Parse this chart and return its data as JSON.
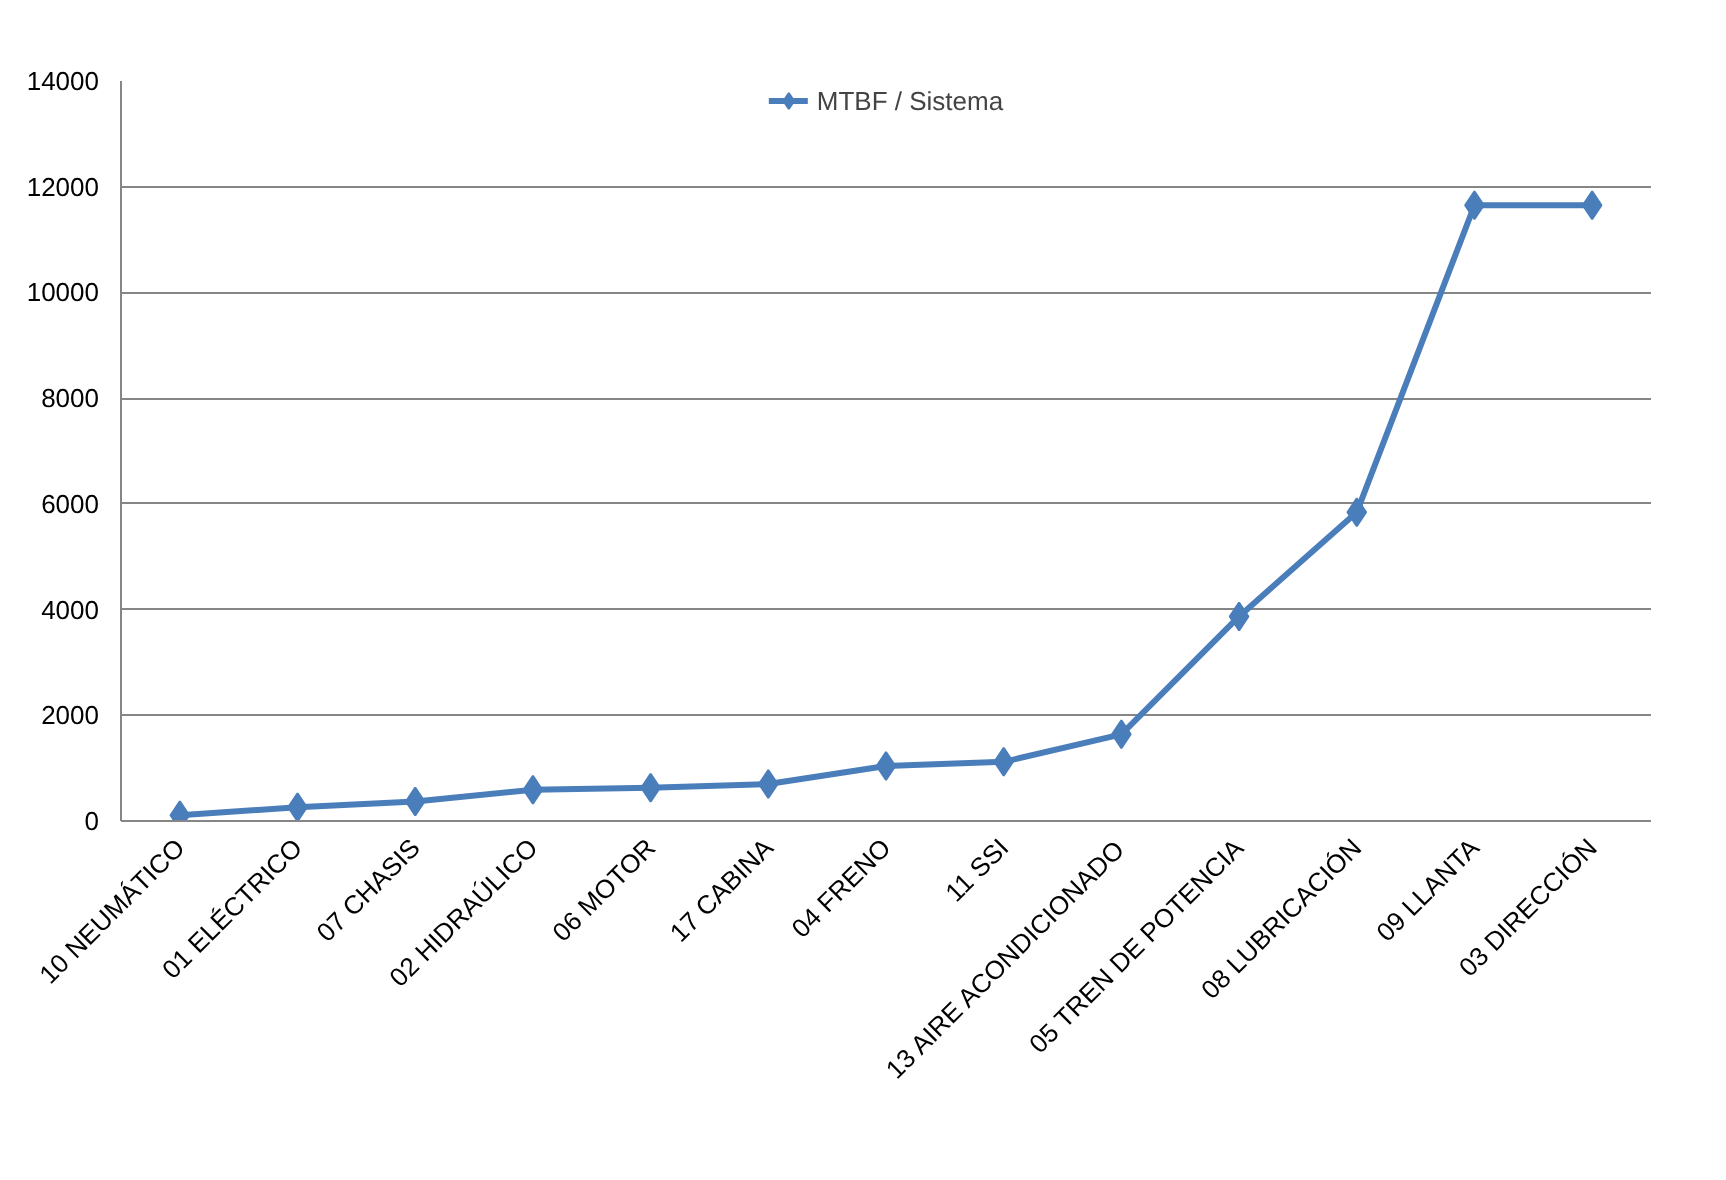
{
  "chart_data": {
    "type": "line",
    "categories": [
      "10 NEUMÁTICO",
      "01 ELÉCTRICO",
      "07 CHASIS",
      "02 HIDRAÚLICO",
      "06 MOTOR",
      "17 CABINA",
      "04 FRENO",
      "11 SSI",
      "13 AIRE ACONDICIONADO",
      "05 TREN DE POTENCIA",
      "08 LUBRICACIÓN",
      "09 LLANTA",
      "03 DIRECCIÓN"
    ],
    "series": [
      {
        "name": "MTBF / Sistema",
        "color": "#4a7ebb",
        "values": [
          110,
          260,
          370,
          590,
          630,
          700,
          1040,
          1120,
          1640,
          3870,
          5840,
          11650,
          11650
        ]
      }
    ],
    "ylim": [
      0,
      14000
    ],
    "yticks": [
      0,
      2000,
      4000,
      6000,
      8000,
      10000,
      12000,
      14000
    ],
    "grid": "y",
    "legend": "top",
    "marker": "diamond",
    "line_style": "solid"
  }
}
